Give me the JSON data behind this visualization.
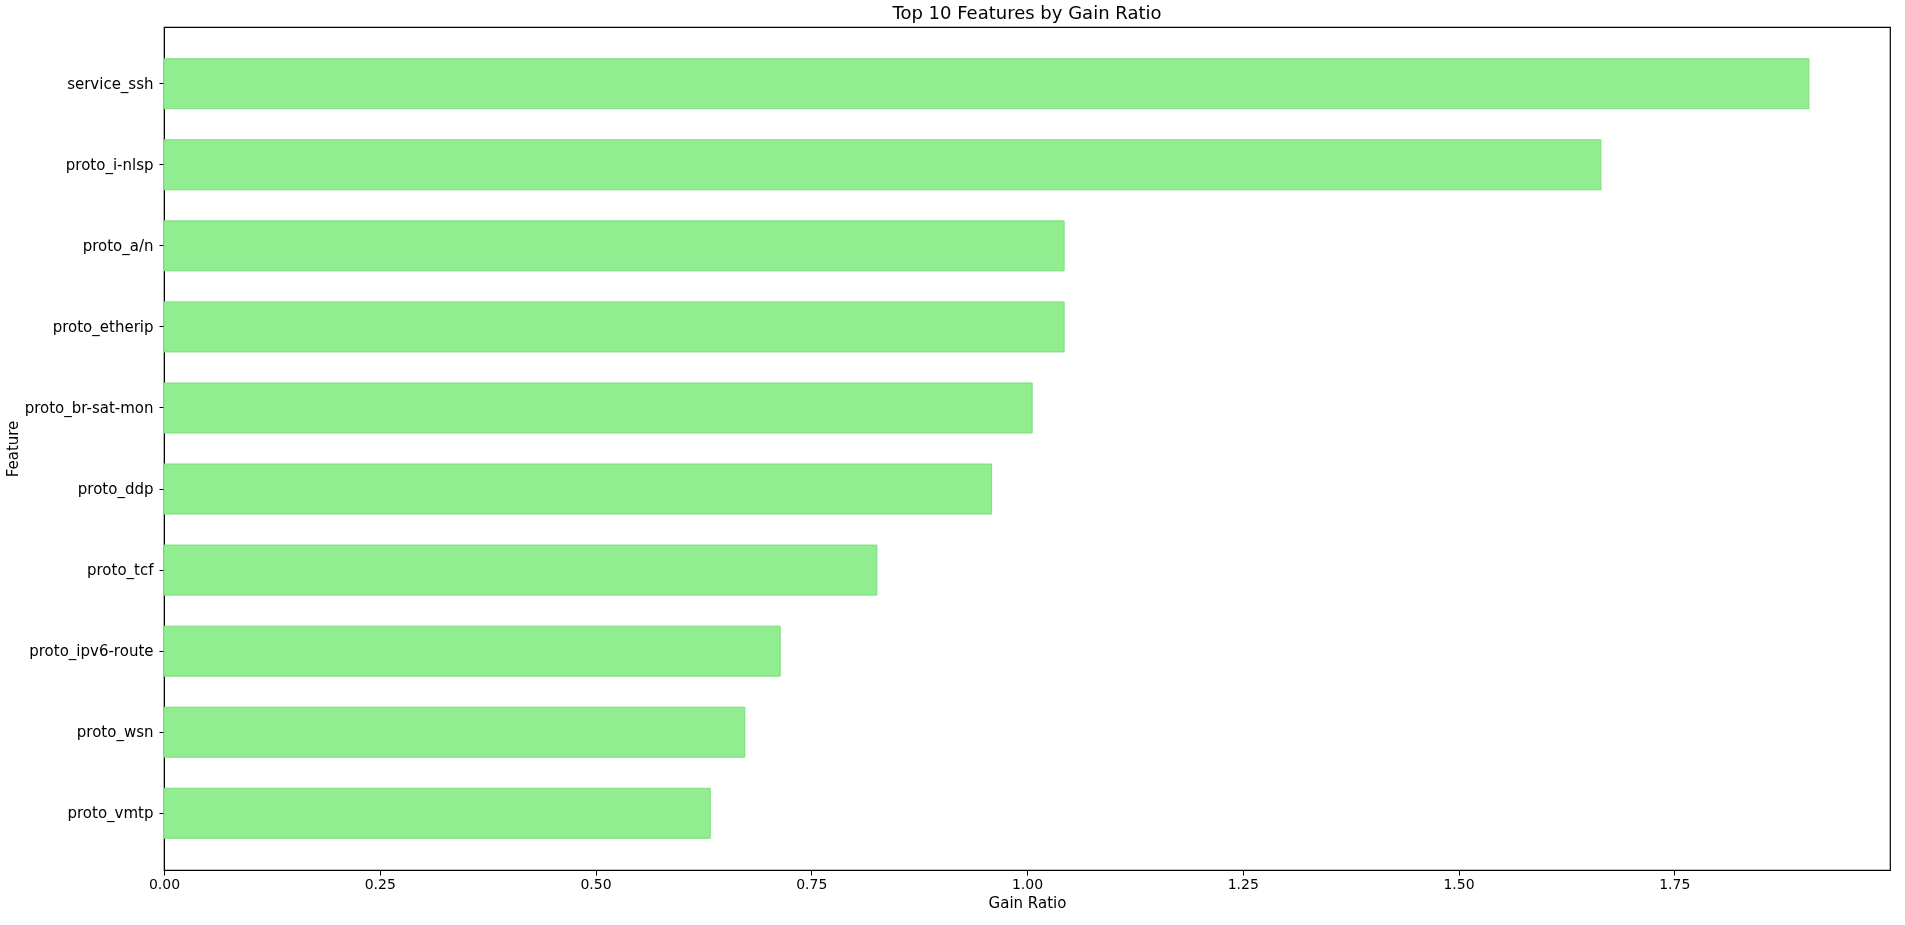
{
  "chart_data": {
    "type": "bar",
    "orientation": "horizontal",
    "title": "Top 10 Features by Gain Ratio",
    "xlabel": "Gain Ratio",
    "ylabel": "Feature",
    "categories": [
      "service_ssh",
      "proto_i-nlsp",
      "proto_a/n",
      "proto_etherip",
      "proto_br-sat-mon",
      "proto_ddp",
      "proto_tcf",
      "proto_ipv6-route",
      "proto_wsn",
      "proto_vmtp"
    ],
    "values": [
      1.906,
      1.665,
      1.043,
      1.043,
      1.006,
      0.959,
      0.826,
      0.714,
      0.673,
      0.633
    ],
    "color": "#90ee90",
    "xlim": [
      0,
      2.0
    ],
    "xticks": [
      {
        "value": 0,
        "label": "0.00"
      },
      {
        "value": 0.25,
        "label": "0.25"
      },
      {
        "value": 0.5,
        "label": "0.50"
      },
      {
        "value": 0.75,
        "label": "0.75"
      },
      {
        "value": 1.0,
        "label": "1.00"
      },
      {
        "value": 1.25,
        "label": "1.25"
      },
      {
        "value": 1.5,
        "label": "1.50"
      },
      {
        "value": 1.75,
        "label": "1.75"
      }
    ],
    "grid": false
  }
}
